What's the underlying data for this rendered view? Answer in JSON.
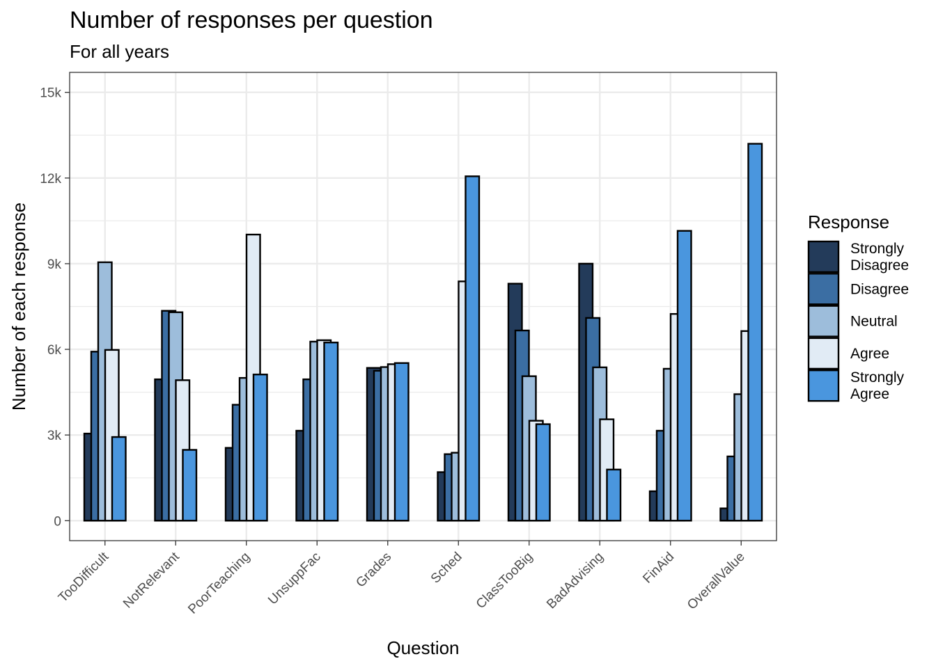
{
  "chart_data": {
    "type": "bar",
    "title": "Number of responses per question",
    "subtitle": "For all years",
    "xlabel": "Question",
    "ylabel": "Number of each response",
    "ylim": [
      -700,
      15700
    ],
    "yticks": [
      0,
      3000,
      6000,
      9000,
      12000,
      15000
    ],
    "ytick_labels": [
      "0",
      "3k",
      "6k",
      "9k",
      "12k",
      "15k"
    ],
    "grid": true,
    "legend_position": "right",
    "legend_title": "Response",
    "categories": [
      "TooDifficult",
      "NotRelevant",
      "PoorTeaching",
      "UnsuppFac",
      "Grades",
      "Sched",
      "ClassTooBig",
      "BadAdvising",
      "FinAid",
      "OverallValue"
    ],
    "series": [
      {
        "name": "Strongly Disagree",
        "label_lines": [
          "Strongly",
          "Disagree"
        ],
        "color": "#233b5a",
        "values": [
          3050,
          4950,
          2550,
          3150,
          5350,
          1700,
          8300,
          9000,
          1030,
          430
        ]
      },
      {
        "name": "Disagree",
        "label_lines": [
          "Disagree"
        ],
        "color": "#3b6ea3",
        "values": [
          5920,
          7350,
          4060,
          4950,
          5250,
          2330,
          6660,
          7100,
          3150,
          2250
        ]
      },
      {
        "name": "Neutral",
        "label_lines": [
          "Neutral"
        ],
        "color": "#9dbddb",
        "values": [
          9050,
          7300,
          5000,
          6270,
          5380,
          2380,
          5060,
          5370,
          5320,
          4430
        ]
      },
      {
        "name": "Agree",
        "label_lines": [
          "Agree"
        ],
        "color": "#e1ebf5",
        "values": [
          5980,
          4920,
          10020,
          6320,
          5480,
          8380,
          3500,
          3550,
          7240,
          6640
        ]
      },
      {
        "name": "Strongly Agree",
        "label_lines": [
          "Strongly",
          "Agree"
        ],
        "color": "#4a96de",
        "values": [
          2930,
          2480,
          5120,
          6240,
          5520,
          12060,
          3380,
          1790,
          10150,
          13200
        ]
      }
    ]
  }
}
